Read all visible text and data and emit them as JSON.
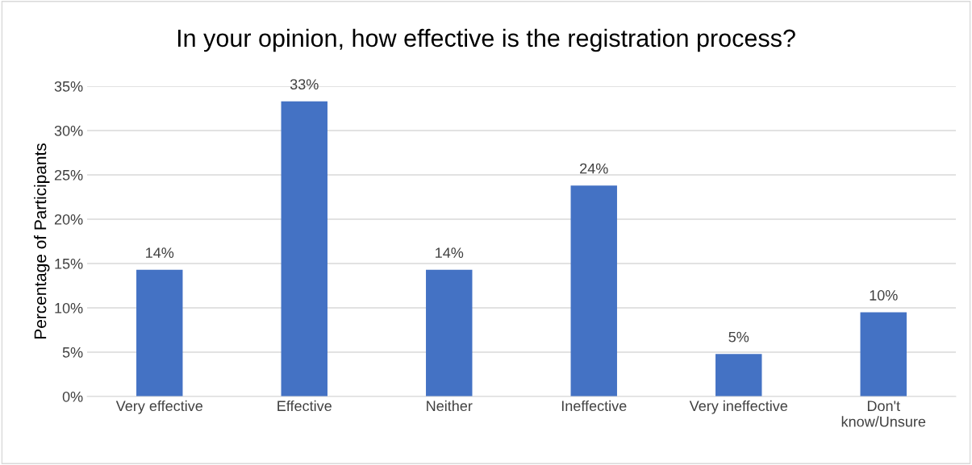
{
  "chart_data": {
    "type": "bar",
    "title": "In your opinion, how effective is the registration process?",
    "ylabel": "Percentage of Participants",
    "categories": [
      "Very effective",
      "Effective",
      "Neither",
      "Ineffective",
      "Very ineffective",
      "Don't\nknow/Unsure"
    ],
    "values": [
      14.3,
      33.3,
      14.3,
      23.8,
      4.8,
      9.5
    ],
    "value_labels": [
      "14%",
      "33%",
      "14%",
      "24%",
      "5%",
      "10%"
    ],
    "color": "#4472c4",
    "ylim": [
      0,
      35
    ],
    "yticks": [
      {
        "value": 0,
        "label": "0%"
      },
      {
        "value": 5,
        "label": "5%"
      },
      {
        "value": 10,
        "label": "10%"
      },
      {
        "value": 15,
        "label": "15%"
      },
      {
        "value": 20,
        "label": "20%"
      },
      {
        "value": 25,
        "label": "25%"
      },
      {
        "value": 30,
        "label": "30%"
      },
      {
        "value": 35,
        "label": "35%"
      }
    ],
    "grid": "y",
    "legend": false
  }
}
